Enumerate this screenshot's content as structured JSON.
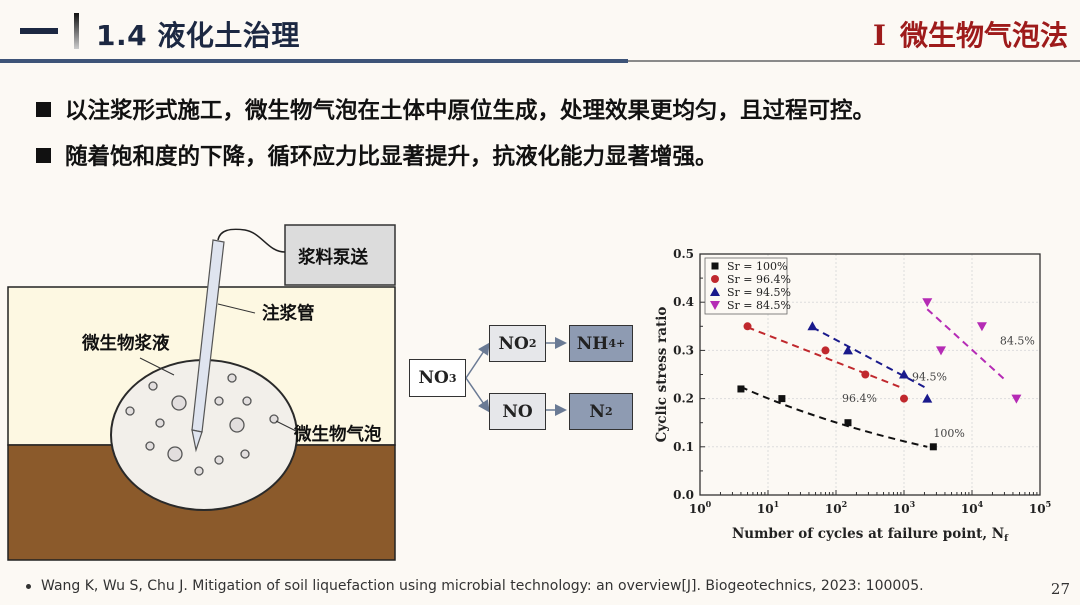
{
  "header": {
    "section_title": "1.4 液化土治理",
    "topic_numeral": "I",
    "topic_title": "微生物气泡法"
  },
  "bullets": [
    {
      "text": "以注浆形式施工，微生物气泡在土体中原位生成，处理效果更均匀，且过程可控。"
    },
    {
      "text": "随着饱和度的下降，循环应力比显著提升，抗液化能力显著增强。"
    }
  ],
  "diagram": {
    "pump_label": "浆料泵送",
    "pipe_label": "注浆管",
    "slurry_label": "微生物浆液",
    "bubble_label": "微生物气泡",
    "colors": {
      "upper_soil": "#fdf8e2",
      "lower_soil": "#8b5a2b",
      "slurry": "#f2efea",
      "pump_box": "#dcdcdc"
    }
  },
  "flow": {
    "source": {
      "base": "NO",
      "sub": "3"
    },
    "upper_mid": {
      "base": "NO",
      "sub": "2"
    },
    "upper_end": {
      "base": "NH",
      "sub": "4",
      "sup": "+"
    },
    "lower_mid": {
      "base": "NO"
    },
    "lower_end": {
      "base": "N",
      "sub": "2"
    }
  },
  "chart_data": {
    "type": "scatter",
    "title": "",
    "xlabel": "Number of cycles at failure point, N_f",
    "ylabel": "Cyclic stress ratio",
    "xscale": "log",
    "xlim": [
      1,
      100000
    ],
    "ylim": [
      0.0,
      0.5
    ],
    "x_ticks": [
      "10^0",
      "10^1",
      "10^2",
      "10^3",
      "10^4",
      "10^5"
    ],
    "y_ticks": [
      "0.0",
      "0.1",
      "0.2",
      "0.3",
      "0.4",
      "0.5"
    ],
    "grid": true,
    "legend_position": "upper-left",
    "series": [
      {
        "name": "Sr = 100%",
        "marker": "square",
        "color": "#111111",
        "trend_label": "100%",
        "points": [
          [
            4,
            0.22
          ],
          [
            16,
            0.2
          ],
          [
            150,
            0.15
          ],
          [
            2700,
            0.1
          ]
        ]
      },
      {
        "name": "Sr = 96.4%",
        "marker": "circle",
        "color": "#c0282d",
        "trend_label": "96.4%",
        "points": [
          [
            5,
            0.35
          ],
          [
            70,
            0.3
          ],
          [
            270,
            0.25
          ],
          [
            1000,
            0.2
          ]
        ]
      },
      {
        "name": "Sr = 94.5%",
        "marker": "triangle-up",
        "color": "#1a1a8c",
        "trend_label": "94.5%",
        "points": [
          [
            45,
            0.35
          ],
          [
            150,
            0.3
          ],
          [
            1000,
            0.25
          ],
          [
            2200,
            0.2
          ]
        ]
      },
      {
        "name": "Sr = 84.5%",
        "marker": "triangle-down",
        "color": "#b52bb5",
        "trend_label": "84.5%",
        "points": [
          [
            2200,
            0.4
          ],
          [
            3500,
            0.3
          ],
          [
            14000,
            0.35
          ],
          [
            45000,
            0.2
          ]
        ]
      }
    ]
  },
  "footer": {
    "reference": "Wang K, Wu S, Chu J. Mitigation of soil liquefaction using microbial technology: an overview[J]. Biogeotechnics, 2023: 100005.",
    "page_number": "27"
  }
}
